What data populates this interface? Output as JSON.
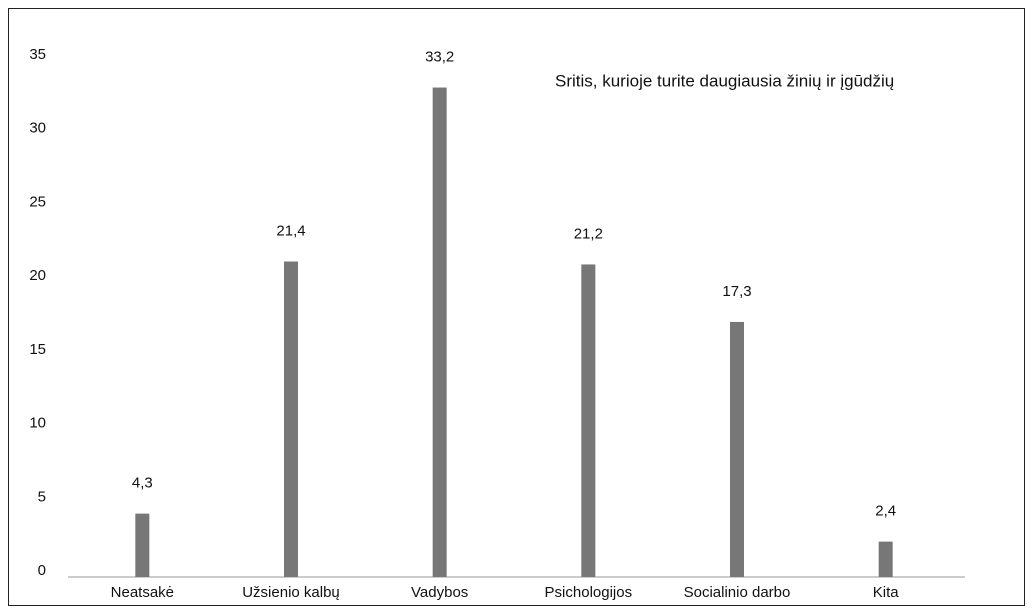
{
  "chart_data": {
    "type": "bar",
    "title": "Sritis, kurioje turite daugiausia žinių ir įgūdžių",
    "categories": [
      "Neatsakė",
      "Užsienio kalbų",
      "Vadybos",
      "Psichologijos",
      "Socialinio darbo",
      "Kita"
    ],
    "values": [
      4.3,
      21.4,
      33.2,
      21.2,
      17.3,
      2.4
    ],
    "value_labels": [
      "4,3",
      "21,4",
      "33,2",
      "21,2",
      "17,3",
      "2,4"
    ],
    "color": "#777777",
    "ylim": [
      0,
      35
    ],
    "yticks": [
      0,
      5,
      10,
      15,
      20,
      25,
      30,
      35
    ],
    "grid": false
  }
}
